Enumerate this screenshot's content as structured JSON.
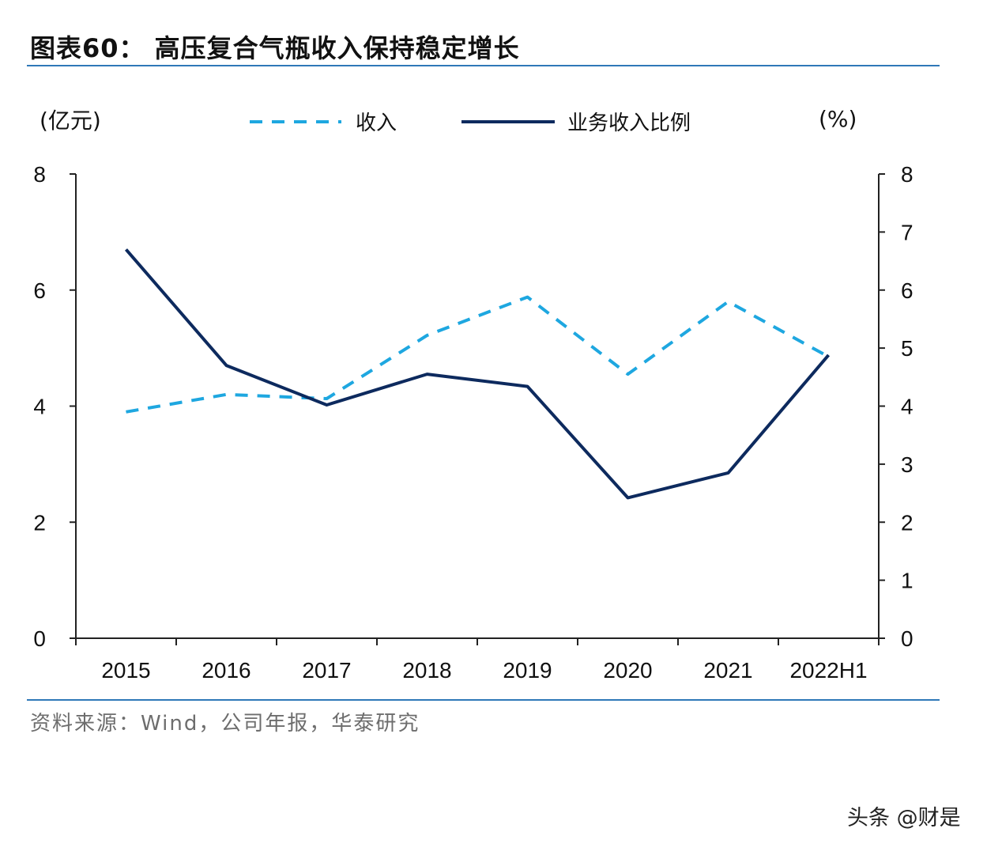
{
  "title": "图表60：  高压复合气瓶收入保持稳定增长",
  "source": "资料来源：Wind，公司年报，华泰研究",
  "watermark": "头条 @财是",
  "chart_data": {
    "type": "line",
    "title": "图表60：  高压复合气瓶收入保持稳定增长",
    "categories": [
      "2015",
      "2016",
      "2017",
      "2018",
      "2019",
      "2020",
      "2021",
      "2022H1"
    ],
    "left_axis": {
      "unit": "(亿元)",
      "range": [
        0,
        8
      ],
      "ticks": [
        0,
        2,
        4,
        6,
        8
      ]
    },
    "right_axis": {
      "unit": "(%)",
      "range": [
        0,
        8
      ],
      "ticks": [
        0,
        1,
        2,
        3,
        4,
        5,
        6,
        7,
        8
      ]
    },
    "series": [
      {
        "name": "收入",
        "axis": "left",
        "style": "dashed",
        "color": "#1ea7e0",
        "values": [
          3.9,
          4.2,
          4.13,
          5.22,
          5.88,
          4.55,
          5.8,
          4.85
        ]
      },
      {
        "name": "业务收入比例",
        "axis": "right",
        "style": "solid",
        "color": "#0d2a5e",
        "values": [
          6.7,
          4.7,
          4.02,
          4.55,
          4.34,
          2.42,
          2.85,
          4.88
        ]
      }
    ],
    "legend_position": "top",
    "grid": false
  }
}
